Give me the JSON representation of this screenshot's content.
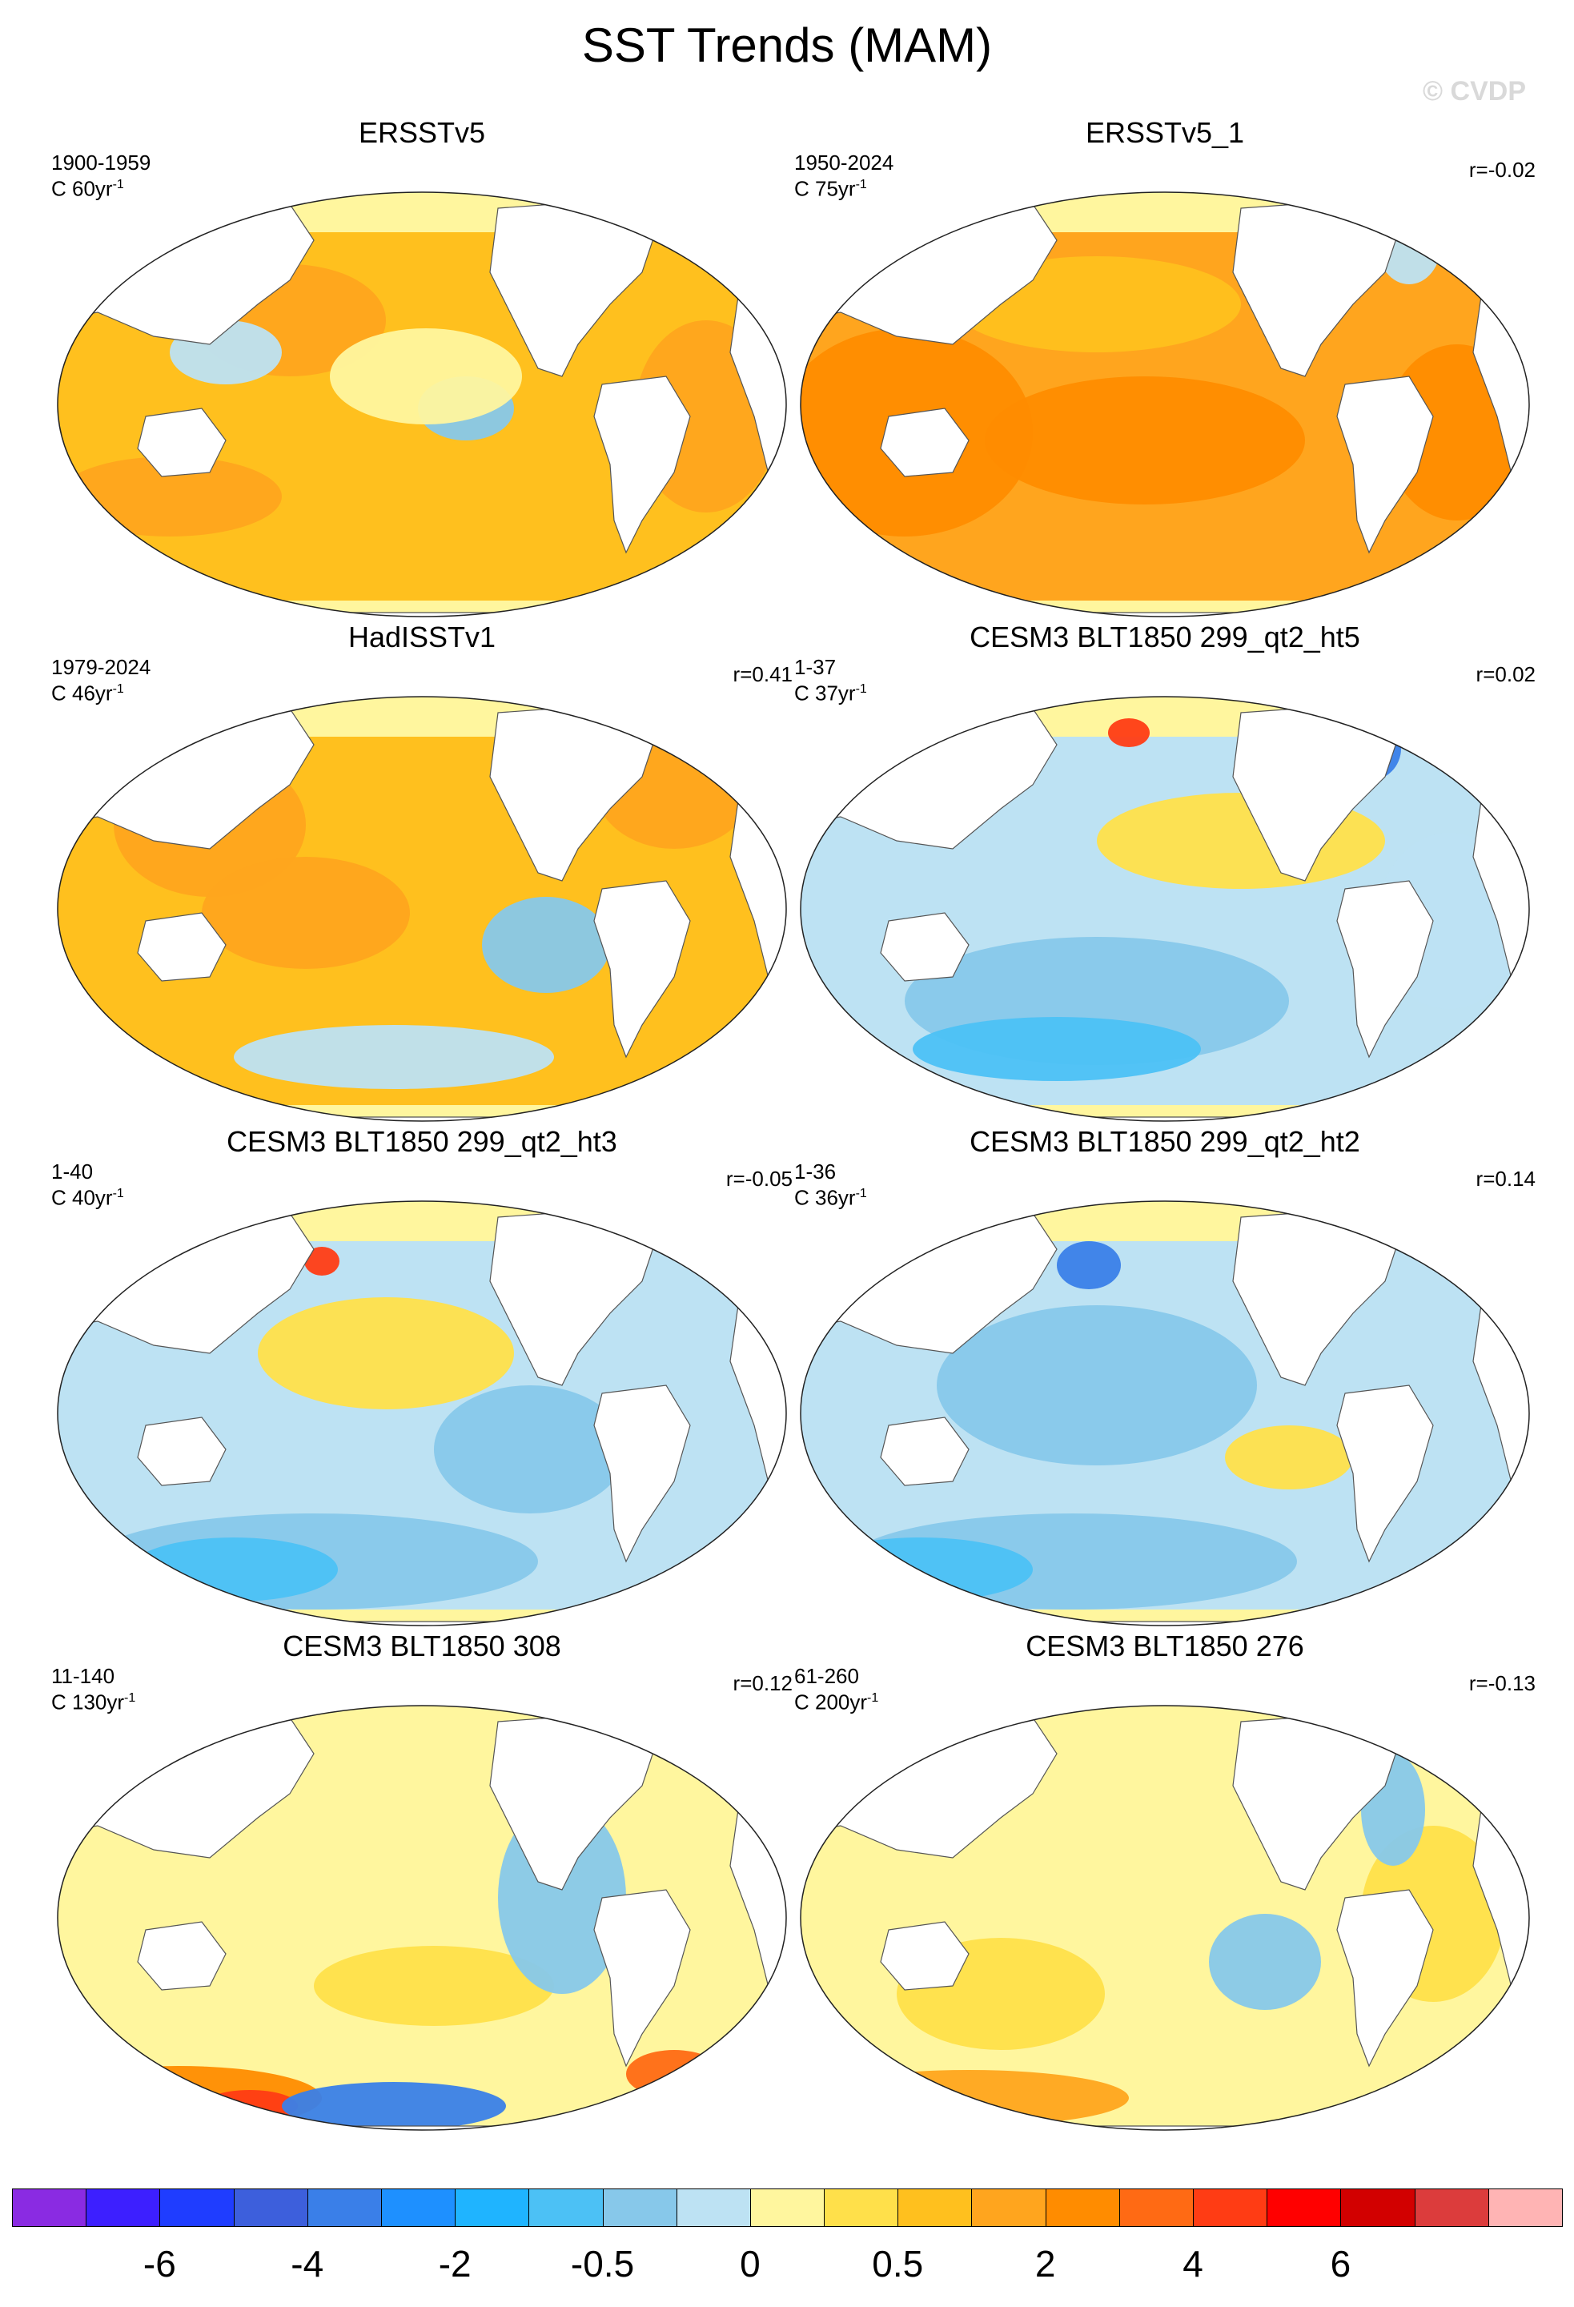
{
  "title": "SST Trends (MAM)",
  "watermark": "© CVDP",
  "panels": [
    {
      "title": "ERSSTv5",
      "range": "1900-1959",
      "unit": "C 60yr",
      "corr": ""
    },
    {
      "title": "ERSSTv5_1",
      "range": "1950-2024",
      "unit": "C 75yr",
      "corr": "r=-0.02"
    },
    {
      "title": "HadISSTv1",
      "range": "1979-2024",
      "unit": "C 46yr",
      "corr": "r=0.41"
    },
    {
      "title": "CESM3 BLT1850 299_qt2_ht5",
      "range": "1-37",
      "unit": "C 37yr",
      "corr": "r=0.02"
    },
    {
      "title": "CESM3 BLT1850 299_qt2_ht3",
      "range": "1-40",
      "unit": "C 40yr",
      "corr": "r=-0.05"
    },
    {
      "title": "CESM3 BLT1850 299_qt2_ht2",
      "range": "1-36",
      "unit": "C 36yr",
      "corr": "r=0.14"
    },
    {
      "title": "CESM3 BLT1850 308",
      "range": "11-140",
      "unit": "C 130yr",
      "corr": "r=0.12"
    },
    {
      "title": "CESM3 BLT1850 276",
      "range": "61-260",
      "unit": "C 200yr",
      "corr": "r=-0.13"
    }
  ],
  "unit_exponent": "-1",
  "colorbar": {
    "colors": [
      "#8a2be2",
      "#3d1fff",
      "#1f3dff",
      "#3d5fdc",
      "#3a7fe8",
      "#1e90ff",
      "#1fb4ff",
      "#4cc1f5",
      "#87c8ea",
      "#bde2f3",
      "#fff69e",
      "#ffe04a",
      "#ffc01e",
      "#ffa51e",
      "#ff8c00",
      "#ff6a14",
      "#ff3c14",
      "#ff0000",
      "#d20000",
      "#dc3c3c",
      "#ffb4b4"
    ],
    "labels": [
      "-6",
      "-4",
      "-2",
      "-0.5",
      "0",
      "0.5",
      "2",
      "4",
      "6"
    ]
  }
}
